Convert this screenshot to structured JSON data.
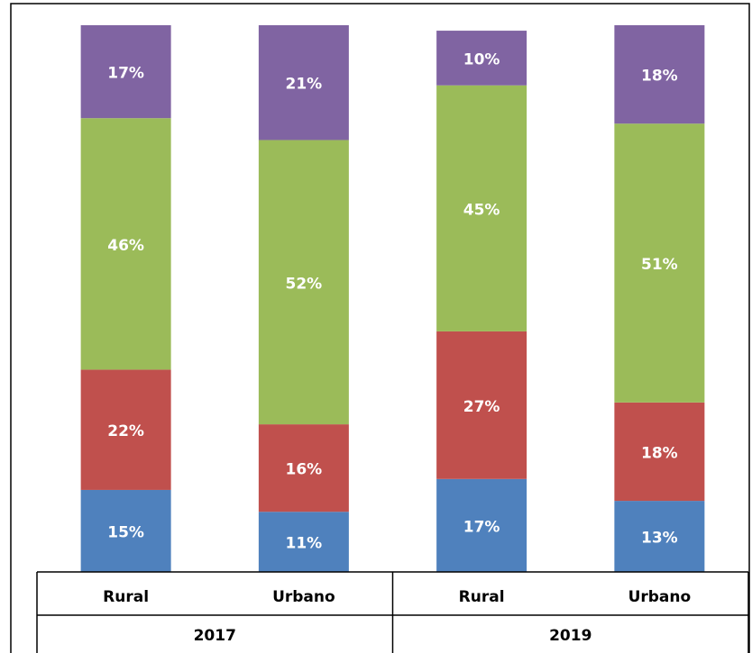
{
  "chart_data": {
    "type": "stacked_bar",
    "categories": [
      "Rural",
      "Urbano",
      "Rural",
      "Urbano"
    ],
    "category_groups": [
      "2017",
      "2019"
    ],
    "series": [
      {
        "color": "#4f81bd",
        "values": [
          15,
          11,
          17,
          13
        ],
        "value_labels": [
          "15%",
          "11%",
          "17%",
          "13%"
        ]
      },
      {
        "color": "#c0504d",
        "values": [
          22,
          16,
          27,
          18
        ],
        "value_labels": [
          "22%",
          "16%",
          "27%",
          "18%"
        ]
      },
      {
        "color": "#9bbb59",
        "values": [
          46,
          52,
          45,
          51
        ],
        "value_labels": [
          "46%",
          "52%",
          "45%",
          "51%"
        ]
      },
      {
        "color": "#8064a2",
        "values": [
          17,
          21,
          10,
          18
        ],
        "value_labels": [
          "17%",
          "21%",
          "10%",
          "18%"
        ]
      }
    ],
    "ylim": [
      0,
      100
    ]
  }
}
